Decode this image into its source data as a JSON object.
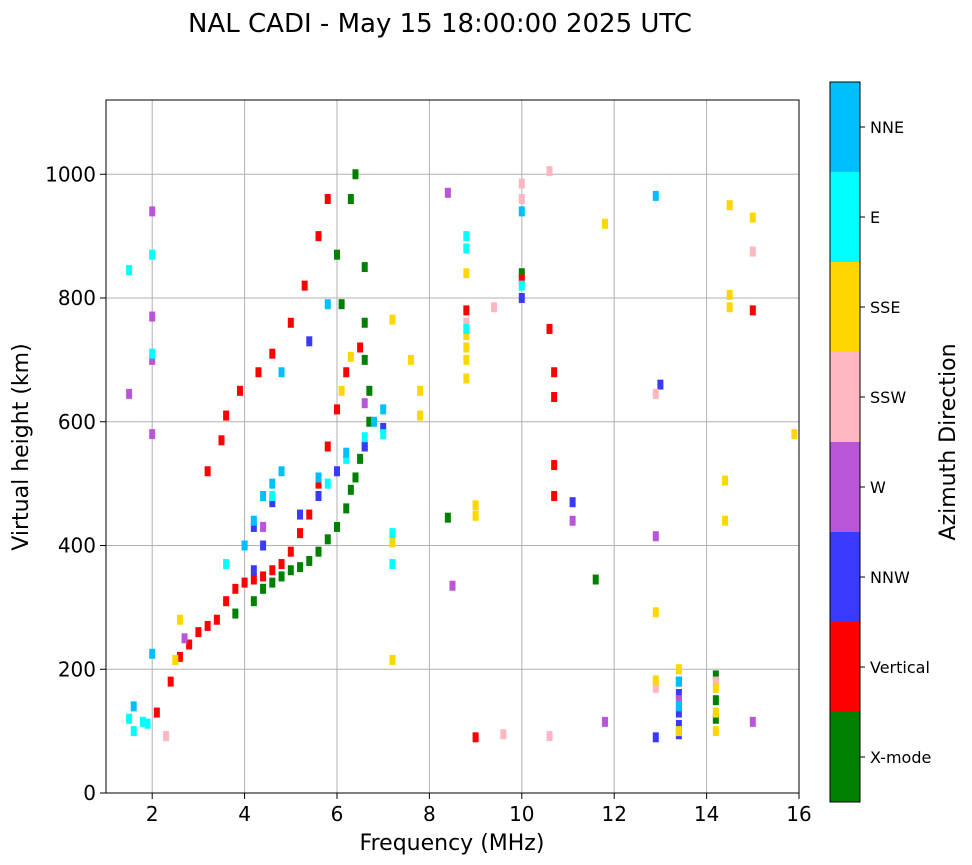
{
  "chart_data": {
    "type": "scatter",
    "title": "NAL CADI - May 15 18:00:00 2025 UTC",
    "xlabel": "Frequency (MHz)",
    "ylabel": "Virtual height (km)",
    "xlim": [
      1,
      16
    ],
    "ylim": [
      0,
      1120
    ],
    "xticks": [
      2,
      4,
      6,
      8,
      10,
      12,
      14,
      16
    ],
    "yticks": [
      0,
      200,
      400,
      600,
      800,
      1000
    ],
    "grid": true,
    "colorbar": {
      "label": "Azimuth Direction",
      "categories": [
        {
          "name": "X-mode",
          "color": "#008000"
        },
        {
          "name": "Vertical",
          "color": "#ff0000"
        },
        {
          "name": "NNW",
          "color": "#3a3aff"
        },
        {
          "name": "W",
          "color": "#b855d8"
        },
        {
          "name": "SSW",
          "color": "#ffb6c1"
        },
        {
          "name": "SSE",
          "color": "#ffd700"
        },
        {
          "name": "E",
          "color": "#00ffff"
        },
        {
          "name": "NNE",
          "color": "#00bfff"
        }
      ]
    },
    "series": [
      {
        "name": "X-mode",
        "points": [
          [
            3.8,
            290
          ],
          [
            4.2,
            310
          ],
          [
            4.4,
            330
          ],
          [
            4.6,
            340
          ],
          [
            4.8,
            350
          ],
          [
            5.0,
            360
          ],
          [
            5.2,
            365
          ],
          [
            5.4,
            375
          ],
          [
            5.6,
            390
          ],
          [
            5.8,
            410
          ],
          [
            6.0,
            430
          ],
          [
            6.2,
            460
          ],
          [
            6.3,
            490
          ],
          [
            6.4,
            510
          ],
          [
            6.5,
            540
          ],
          [
            6.6,
            560
          ],
          [
            6.7,
            600
          ],
          [
            6.7,
            650
          ],
          [
            6.6,
            700
          ],
          [
            6.6,
            760
          ],
          [
            6.6,
            850
          ],
          [
            6.3,
            960
          ],
          [
            6.4,
            1000
          ],
          [
            6.0,
            870
          ],
          [
            6.1,
            790
          ],
          [
            10.0,
            840
          ],
          [
            8.4,
            445
          ],
          [
            11.6,
            345
          ],
          [
            14.2,
            150
          ],
          [
            14.2,
            120
          ],
          [
            14.2,
            190
          ]
        ]
      },
      {
        "name": "Vertical",
        "points": [
          [
            2.1,
            130
          ],
          [
            2.4,
            180
          ],
          [
            2.6,
            220
          ],
          [
            2.8,
            240
          ],
          [
            3.0,
            260
          ],
          [
            3.2,
            270
          ],
          [
            3.4,
            280
          ],
          [
            3.6,
            310
          ],
          [
            3.8,
            330
          ],
          [
            4.0,
            340
          ],
          [
            4.2,
            345
          ],
          [
            4.4,
            350
          ],
          [
            4.6,
            360
          ],
          [
            4.8,
            370
          ],
          [
            5.0,
            390
          ],
          [
            5.2,
            420
          ],
          [
            5.4,
            450
          ],
          [
            5.6,
            500
          ],
          [
            5.8,
            560
          ],
          [
            6.0,
            620
          ],
          [
            6.2,
            680
          ],
          [
            6.5,
            720
          ],
          [
            3.2,
            520
          ],
          [
            3.5,
            570
          ],
          [
            3.6,
            610
          ],
          [
            3.9,
            650
          ],
          [
            4.3,
            680
          ],
          [
            4.6,
            710
          ],
          [
            5.0,
            760
          ],
          [
            5.3,
            820
          ],
          [
            5.6,
            900
          ],
          [
            5.8,
            960
          ],
          [
            10.6,
            750
          ],
          [
            10.7,
            680
          ],
          [
            10.7,
            530
          ],
          [
            10.7,
            480
          ],
          [
            10.7,
            640
          ],
          [
            9.0,
            90
          ],
          [
            8.8,
            780
          ],
          [
            15.0,
            780
          ],
          [
            10.0,
            830
          ]
        ]
      },
      {
        "name": "NNW",
        "points": [
          [
            4.2,
            430
          ],
          [
            4.4,
            400
          ],
          [
            4.6,
            470
          ],
          [
            5.2,
            450
          ],
          [
            5.6,
            480
          ],
          [
            6.0,
            520
          ],
          [
            6.6,
            560
          ],
          [
            7.0,
            590
          ],
          [
            13.4,
            180
          ],
          [
            13.4,
            160
          ],
          [
            13.4,
            130
          ],
          [
            13.4,
            110
          ],
          [
            13.4,
            95
          ],
          [
            12.9,
            90
          ],
          [
            10.0,
            800
          ],
          [
            13.0,
            660
          ],
          [
            11.1,
            470
          ],
          [
            5.4,
            730
          ],
          [
            4.2,
            360
          ]
        ]
      },
      {
        "name": "W",
        "points": [
          [
            2.0,
            940
          ],
          [
            2.0,
            770
          ],
          [
            2.0,
            700
          ],
          [
            2.0,
            580
          ],
          [
            1.5,
            645
          ],
          [
            8.5,
            335
          ],
          [
            8.4,
            970
          ],
          [
            12.9,
            415
          ],
          [
            11.8,
            115
          ],
          [
            15.0,
            115
          ],
          [
            11.1,
            440
          ],
          [
            6.6,
            630
          ],
          [
            4.4,
            430
          ],
          [
            2.7,
            250
          ],
          [
            13.4,
            150
          ]
        ]
      },
      {
        "name": "SSW",
        "points": [
          [
            8.8,
            760
          ],
          [
            10.0,
            985
          ],
          [
            10.0,
            960
          ],
          [
            10.6,
            1005
          ],
          [
            12.9,
            645
          ],
          [
            12.9,
            170
          ],
          [
            15.0,
            875
          ],
          [
            10.6,
            92
          ],
          [
            9.6,
            95
          ],
          [
            9.4,
            785
          ],
          [
            14.2,
            180
          ],
          [
            2.3,
            92
          ]
        ]
      },
      {
        "name": "SSE",
        "points": [
          [
            8.8,
            670
          ],
          [
            8.8,
            700
          ],
          [
            8.8,
            720
          ],
          [
            8.8,
            740
          ],
          [
            8.8,
            840
          ],
          [
            9.0,
            465
          ],
          [
            9.0,
            448
          ],
          [
            12.9,
            292
          ],
          [
            12.9,
            182
          ],
          [
            13.4,
            200
          ],
          [
            13.4,
            100
          ],
          [
            14.2,
            170
          ],
          [
            14.2,
            100
          ],
          [
            14.2,
            130
          ],
          [
            14.5,
            950
          ],
          [
            14.5,
            805
          ],
          [
            14.5,
            785
          ],
          [
            14.4,
            505
          ],
          [
            14.4,
            440
          ],
          [
            15.0,
            930
          ],
          [
            15.9,
            580
          ],
          [
            11.8,
            920
          ],
          [
            7.8,
            650
          ],
          [
            7.8,
            610
          ],
          [
            7.6,
            700
          ],
          [
            7.2,
            765
          ],
          [
            7.2,
            215
          ],
          [
            7.2,
            405
          ],
          [
            6.3,
            705
          ],
          [
            6.1,
            650
          ],
          [
            2.5,
            215
          ],
          [
            2.6,
            280
          ]
        ]
      },
      {
        "name": "E",
        "points": [
          [
            1.5,
            845
          ],
          [
            1.5,
            120
          ],
          [
            1.6,
            100
          ],
          [
            1.8,
            115
          ],
          [
            2.0,
            710
          ],
          [
            2.0,
            870
          ],
          [
            3.6,
            370
          ],
          [
            4.0,
            400
          ],
          [
            4.6,
            480
          ],
          [
            5.8,
            500
          ],
          [
            6.2,
            540
          ],
          [
            6.6,
            575
          ],
          [
            7.0,
            580
          ],
          [
            7.2,
            420
          ],
          [
            7.2,
            370
          ],
          [
            8.8,
            900
          ],
          [
            8.8,
            880
          ],
          [
            8.8,
            750
          ],
          [
            10.0,
            820
          ],
          [
            1.9,
            112
          ]
        ]
      },
      {
        "name": "NNE",
        "points": [
          [
            4.0,
            400
          ],
          [
            4.2,
            440
          ],
          [
            4.4,
            480
          ],
          [
            4.6,
            500
          ],
          [
            4.8,
            520
          ],
          [
            5.6,
            510
          ],
          [
            6.2,
            550
          ],
          [
            6.8,
            600
          ],
          [
            7.0,
            620
          ],
          [
            12.9,
            965
          ],
          [
            10.0,
            940
          ],
          [
            5.8,
            790
          ],
          [
            4.8,
            680
          ],
          [
            13.4,
            140
          ],
          [
            13.4,
            180
          ],
          [
            2.0,
            225
          ],
          [
            1.6,
            140
          ]
        ]
      }
    ]
  }
}
